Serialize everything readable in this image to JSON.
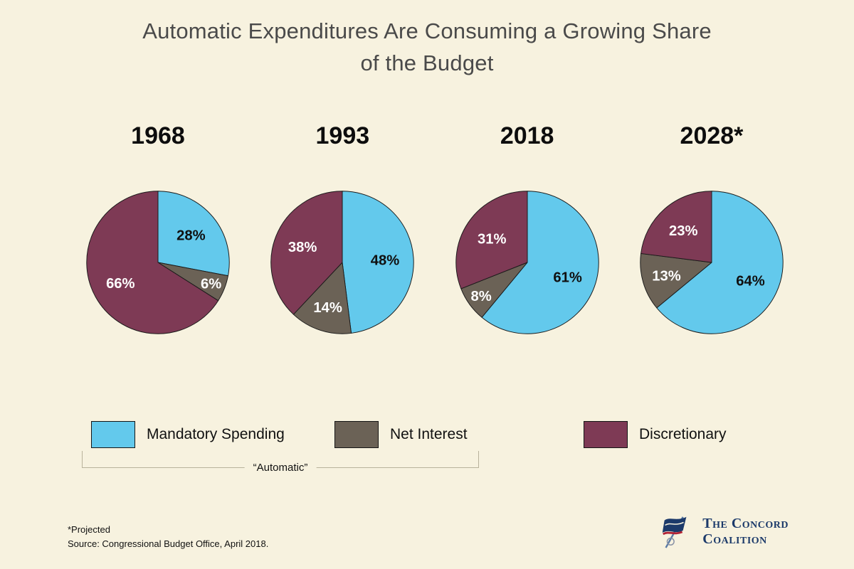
{
  "title": {
    "line1": "Automatic Expenditures Are Consuming a Growing Share",
    "line2": "of the Budget"
  },
  "chart_data": [
    {
      "type": "pie",
      "year": "1968",
      "slices": [
        {
          "key": "mandatory",
          "label": "Mandatory Spending",
          "value": 28
        },
        {
          "key": "net_interest",
          "label": "Net Interest",
          "value": 6
        },
        {
          "key": "discretionary",
          "label": "Discretionary",
          "value": 66
        }
      ]
    },
    {
      "type": "pie",
      "year": "1993",
      "slices": [
        {
          "key": "mandatory",
          "label": "Mandatory Spending",
          "value": 48
        },
        {
          "key": "net_interest",
          "label": "Net Interest",
          "value": 14
        },
        {
          "key": "discretionary",
          "label": "Discretionary",
          "value": 38
        }
      ]
    },
    {
      "type": "pie",
      "year": "2018",
      "slices": [
        {
          "key": "mandatory",
          "label": "Mandatory Spending",
          "value": 61
        },
        {
          "key": "net_interest",
          "label": "Net Interest",
          "value": 8
        },
        {
          "key": "discretionary",
          "label": "Discretionary",
          "value": 31
        }
      ]
    },
    {
      "type": "pie",
      "year": "2028*",
      "slices": [
        {
          "key": "mandatory",
          "label": "Mandatory Spending",
          "value": 64
        },
        {
          "key": "net_interest",
          "label": "Net Interest",
          "value": 13
        },
        {
          "key": "discretionary",
          "label": "Discretionary",
          "value": 23
        }
      ]
    }
  ],
  "colors": {
    "mandatory": "#63c9ec",
    "net_interest": "#6b6256",
    "discretionary": "#7e3a55",
    "label_on_mandatory": "#101010",
    "label_on_other": "#ffffff",
    "background": "#f7f2df",
    "logo_navy": "#1c3a6a",
    "logo_red": "#b22234"
  },
  "legend": {
    "items": [
      {
        "key": "mandatory",
        "label": "Mandatory Spending"
      },
      {
        "key": "net_interest",
        "label": "Net Interest"
      },
      {
        "key": "discretionary",
        "label": "Discretionary"
      }
    ],
    "bracket_label": "“Automatic”"
  },
  "footnotes": {
    "line1": "*Projected",
    "line2": "Source: Congressional Budget Office, April 2018."
  },
  "logo": {
    "line1": "The Concord",
    "line2": "Coalition"
  }
}
